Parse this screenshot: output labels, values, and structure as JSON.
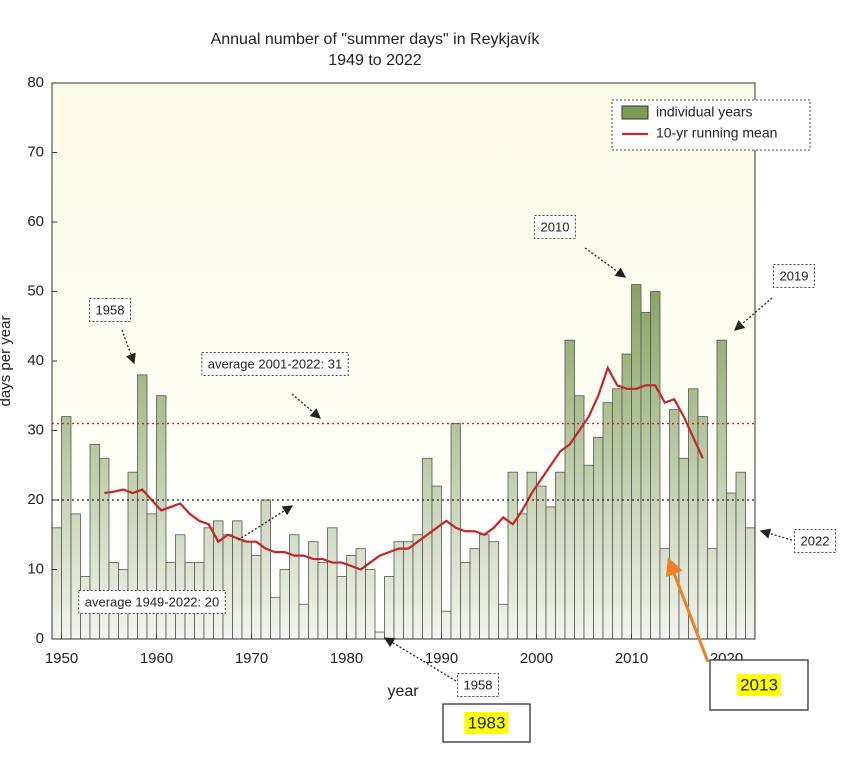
{
  "chart_data": {
    "type": "step",
    "title": "Annual number of \"summer days\" in Reykjavík",
    "subtitle": "1949 to 2022",
    "xlabel": "year",
    "ylabel": "days per year",
    "x": [
      1949,
      1950,
      1951,
      1952,
      1953,
      1954,
      1955,
      1956,
      1957,
      1958,
      1959,
      1960,
      1961,
      1962,
      1963,
      1964,
      1965,
      1966,
      1967,
      1968,
      1969,
      1970,
      1971,
      1972,
      1973,
      1974,
      1975,
      1976,
      1977,
      1978,
      1979,
      1980,
      1981,
      1982,
      1983,
      1984,
      1985,
      1986,
      1987,
      1988,
      1989,
      1990,
      1991,
      1992,
      1993,
      1994,
      1995,
      1996,
      1997,
      1998,
      1999,
      2000,
      2001,
      2002,
      2003,
      2004,
      2005,
      2006,
      2007,
      2008,
      2009,
      2010,
      2011,
      2012,
      2013,
      2014,
      2015,
      2016,
      2017,
      2018,
      2019,
      2020,
      2021,
      2022
    ],
    "series": [
      {
        "name": "individual years",
        "color": "#7d9a55",
        "values": [
          16,
          32,
          18,
          9,
          28,
          26,
          11,
          10,
          24,
          38,
          18,
          35,
          11,
          15,
          11,
          11,
          16,
          17,
          15,
          17,
          14,
          12,
          20,
          6,
          10,
          15,
          5,
          14,
          11,
          16,
          9,
          12,
          13,
          10,
          1,
          9,
          14,
          14,
          15,
          26,
          22,
          4,
          31,
          11,
          13,
          15,
          14,
          5,
          24,
          18,
          24,
          22,
          19,
          24,
          43,
          35,
          25,
          29,
          34,
          36,
          41,
          51,
          47,
          50,
          13,
          33,
          26,
          36,
          32,
          13,
          43,
          21,
          24,
          16
        ]
      },
      {
        "name": "10-yr running mean",
        "color": "#c0272d",
        "x": [
          1954,
          1955,
          1956,
          1957,
          1958,
          1959,
          1960,
          1961,
          1962,
          1963,
          1964,
          1965,
          1966,
          1967,
          1968,
          1969,
          1970,
          1971,
          1972,
          1973,
          1974,
          1975,
          1976,
          1977,
          1978,
          1979,
          1980,
          1981,
          1982,
          1983,
          1984,
          1985,
          1986,
          1987,
          1988,
          1989,
          1990,
          1991,
          1992,
          1993,
          1994,
          1995,
          1996,
          1997,
          1998,
          1999,
          2000,
          2001,
          2002,
          2003,
          2004,
          2005,
          2006,
          2007,
          2008,
          2009,
          2010,
          2011,
          2012,
          2013,
          2014,
          2015,
          2016,
          2017
        ],
        "values": [
          21,
          21.2,
          21.5,
          21,
          21.5,
          20,
          18.5,
          19,
          19.5,
          18,
          17,
          16.5,
          14,
          15,
          14.5,
          14,
          14,
          13,
          12.5,
          12.5,
          12,
          12,
          11.5,
          11.5,
          11,
          11,
          10.5,
          10,
          11,
          12,
          12.5,
          13,
          13,
          14,
          15,
          16,
          17,
          16,
          15.5,
          15.5,
          15,
          16,
          17.5,
          16.5,
          18.5,
          21,
          23,
          25,
          27,
          28,
          30,
          32,
          35,
          39,
          36.5,
          36,
          36,
          36.5,
          36.5,
          34,
          34.5,
          32,
          29,
          26
        ]
      }
    ],
    "reference_lines": [
      {
        "value": 20,
        "color": "#222222",
        "label": "average 1949-2022: 20"
      },
      {
        "value": 31,
        "color": "#c0272d",
        "label": "average 2001-2022: 31"
      }
    ],
    "annotations": [
      "1958",
      "2010",
      "2019",
      "2022",
      "1958"
    ],
    "overlay_labels": [
      "2013",
      "1983"
    ],
    "xlim": [
      1949,
      2023
    ],
    "xticks": [
      1950,
      1960,
      1970,
      1980,
      1990,
      2000,
      2010,
      2020
    ],
    "ylim": [
      0,
      80
    ],
    "yticks": [
      0,
      10,
      20,
      30,
      40,
      50,
      60,
      70,
      80
    ],
    "legend": "upper right"
  }
}
